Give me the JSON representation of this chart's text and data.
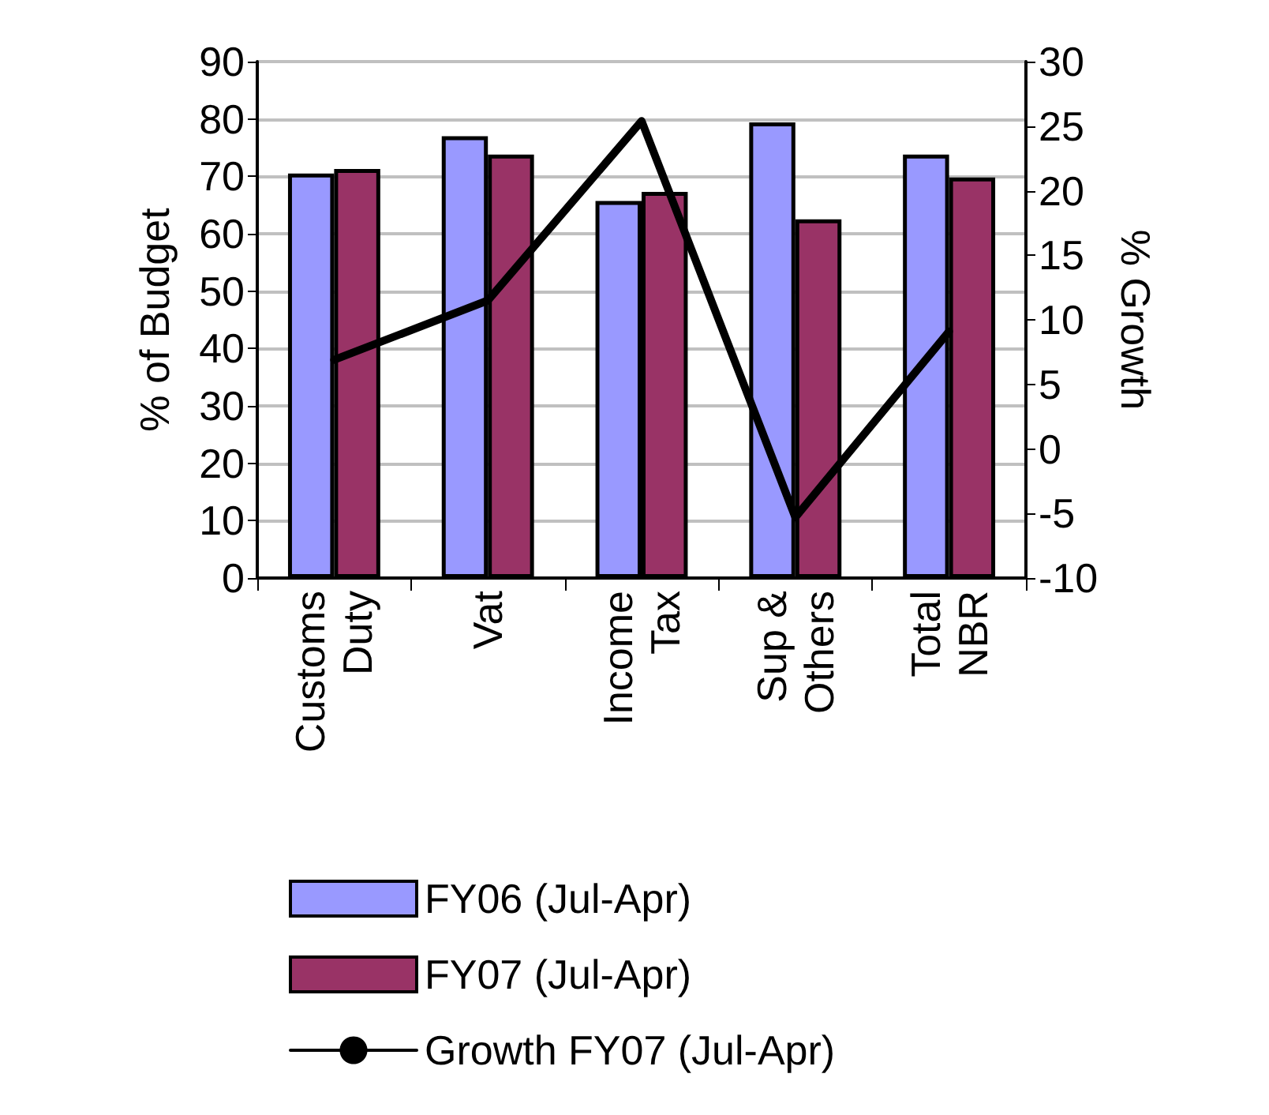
{
  "chart_data": {
    "type": "bar",
    "categories": [
      "Customs Duty",
      "Vat",
      "Income Tax",
      "Sup & Others",
      "Total NBR"
    ],
    "series": [
      {
        "name": "FY06 (Jul-Apr)",
        "color": "#9999ff",
        "values": [
          70.5,
          77,
          65.7,
          79.4,
          73.8
        ]
      },
      {
        "name": "FY07 (Jul-Apr)",
        "color": "#993366",
        "values": [
          71.3,
          73.8,
          67.3,
          62.5,
          69.8
        ]
      },
      {
        "name": "Growth FY07 (Jul-Apr)",
        "type": "line",
        "axis": "y2",
        "color": "#000000",
        "marker": "none",
        "values": [
          6.9,
          11.5,
          25.4,
          -5.3,
          9.1
        ]
      }
    ],
    "ylabel": "% of Budget",
    "y2label": "% Growth",
    "ylim": [
      0,
      90
    ],
    "yticks": [
      0,
      10,
      20,
      30,
      40,
      50,
      60,
      70,
      80,
      90
    ],
    "y2lim": [
      -10,
      30
    ],
    "y2ticks": [
      -10,
      -5,
      0,
      5,
      10,
      15,
      20,
      25,
      30
    ],
    "grid": "y",
    "legend": "bottom left"
  }
}
